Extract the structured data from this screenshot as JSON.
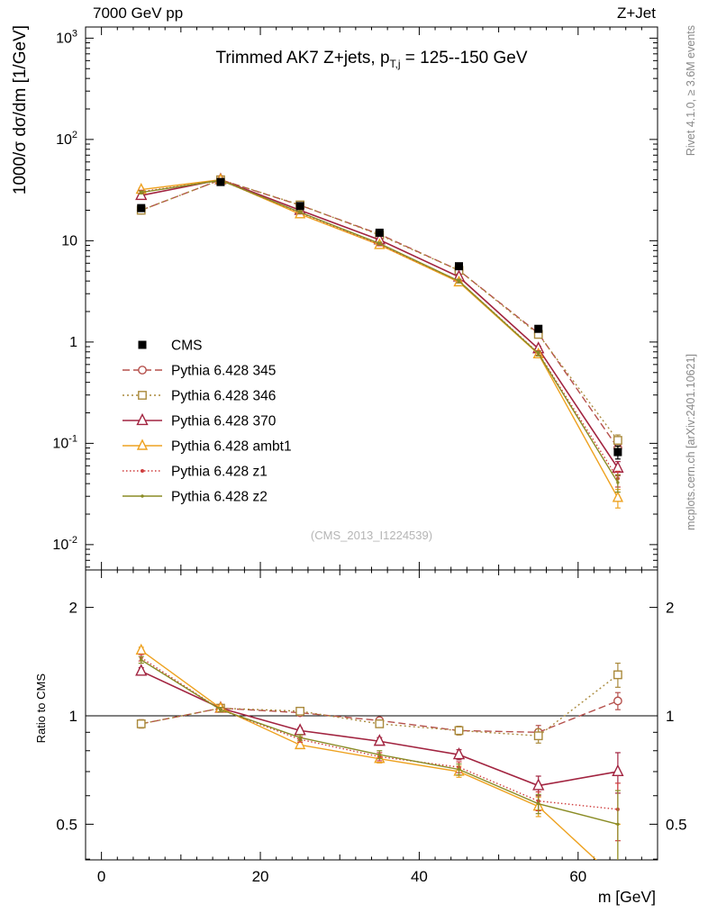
{
  "header": {
    "left_label": "7000 GeV pp",
    "right_label": "Z+Jet"
  },
  "title": {
    "pre": "Trimmed AK7 Z+jets, p",
    "sub": "T,j",
    "post": " = 125--150 GeV"
  },
  "watermark": "(CMS_2013_I1224539)",
  "side_notes": {
    "top_rotated": "Rivet 4.1.0, ≥ 3.6M events",
    "bottom_rotated": "mcplots.cern.ch [arXiv:2401.10621]"
  },
  "chart_data": {
    "type": "line",
    "title": "Trimmed AK7 Z+jets, p_T,j = 125--150 GeV",
    "xlabel": "m [GeV]",
    "ylabel_main": "1000/σ  dσ/dm [1/GeV]",
    "ylabel_ratio": "Ratio to CMS",
    "xlim": [
      -2,
      70
    ],
    "x": [
      5,
      15,
      25,
      35,
      45,
      55,
      65
    ],
    "x_ticks": {
      "minor_step": 2,
      "medium_step": 10,
      "major_step": 20,
      "labels": [
        0,
        20,
        40,
        60
      ]
    },
    "main_axis": {
      "scale": "log",
      "log_range": [
        -2.25,
        3.11
      ],
      "label_decades": [
        3,
        2,
        1,
        0,
        -1,
        -2
      ]
    },
    "ratio_axis": {
      "scale": "log",
      "log_range": [
        -0.4,
        0.405
      ],
      "labeled": [
        0.5,
        1,
        2
      ]
    },
    "legend_position": "middle-left",
    "series": [
      {
        "name": "CMS",
        "label": "CMS",
        "color": "#000000",
        "line": "none",
        "marker": "square-filled",
        "marker_size": 4.5,
        "values": [
          21,
          38,
          22,
          12,
          5.6,
          1.35,
          0.082
        ],
        "errors": [
          1.2,
          1.5,
          0.9,
          0.5,
          0.28,
          0.08,
          0.012
        ],
        "ratio": null,
        "ratio_errors": null
      },
      {
        "name": "py345",
        "label": "Pythia 6.428 345",
        "color": "#b5504c",
        "line": "dashed",
        "marker": "circle-open",
        "marker_size": 4.2,
        "values": [
          20,
          40,
          22.4,
          11.6,
          5.1,
          1.22,
          0.09
        ],
        "errors": [
          0.8,
          1.0,
          0.6,
          0.35,
          0.2,
          0.06,
          0.012
        ],
        "ratio": [
          0.95,
          1.05,
          1.02,
          0.97,
          0.91,
          0.9,
          1.1
        ],
        "ratio_errors": [
          0.025,
          0.015,
          0.015,
          0.02,
          0.025,
          0.04,
          0.06
        ]
      },
      {
        "name": "py346",
        "label": "Pythia 6.428 346",
        "color": "#aa8a3c",
        "line": "dotted",
        "marker": "square-open",
        "marker_size": 4.2,
        "values": [
          20,
          40,
          22.6,
          11.4,
          5.1,
          1.19,
          0.107
        ],
        "errors": [
          0.8,
          1.0,
          0.6,
          0.35,
          0.2,
          0.06,
          0.014
        ],
        "ratio": [
          0.95,
          1.05,
          1.03,
          0.95,
          0.91,
          0.88,
          1.3
        ],
        "ratio_errors": [
          0.025,
          0.015,
          0.015,
          0.02,
          0.025,
          0.04,
          0.1
        ]
      },
      {
        "name": "py370",
        "label": "Pythia 6.428 370",
        "color": "#a22440",
        "line": "solid",
        "marker": "triangle-open",
        "marker_size": 5.5,
        "values": [
          28,
          40,
          20,
          10.2,
          4.4,
          0.86,
          0.057
        ],
        "errors": [
          1.0,
          1.0,
          0.55,
          0.3,
          0.18,
          0.05,
          0.009
        ],
        "ratio": [
          1.33,
          1.05,
          0.91,
          0.85,
          0.78,
          0.64,
          0.7
        ],
        "ratio_errors": [
          0.03,
          0.015,
          0.015,
          0.02,
          0.025,
          0.04,
          0.09
        ]
      },
      {
        "name": "pyambt1",
        "label": "Pythia 6.428 ambt1",
        "color": "#eea220",
        "line": "solid",
        "marker": "triangle-open",
        "marker_size": 5,
        "values": [
          32,
          40,
          18.3,
          9.1,
          3.9,
          0.76,
          0.029
        ],
        "errors": [
          1.1,
          1.0,
          0.5,
          0.28,
          0.16,
          0.04,
          0.006
        ],
        "ratio": [
          1.52,
          1.05,
          0.83,
          0.76,
          0.7,
          0.56,
          0.35
        ],
        "ratio_errors": [
          0.03,
          0.015,
          0.015,
          0.02,
          0.025,
          0.035,
          0.15
        ]
      },
      {
        "name": "pyz1",
        "label": "Pythia 6.428 z1",
        "color": "#cf3f3f",
        "line": "fine-dotted",
        "marker": "dot",
        "marker_size": 2,
        "values": [
          30.5,
          39.5,
          18.9,
          9.2,
          4.0,
          0.78,
          0.045
        ],
        "errors": [
          1.0,
          1.0,
          0.5,
          0.28,
          0.16,
          0.04,
          0.008
        ],
        "ratio": [
          1.45,
          1.04,
          0.86,
          0.77,
          0.72,
          0.58,
          0.55
        ],
        "ratio_errors": [
          0.03,
          0.015,
          0.015,
          0.02,
          0.025,
          0.035,
          0.1
        ]
      },
      {
        "name": "pyz2",
        "label": "Pythia 6.428 z2",
        "color": "#8a8c25",
        "line": "solid",
        "marker": "dot",
        "marker_size": 1.7,
        "values": [
          30,
          39.5,
          19.1,
          9.4,
          4.0,
          0.77,
          0.041
        ],
        "errors": [
          1.0,
          1.0,
          0.5,
          0.28,
          0.16,
          0.04,
          0.008
        ],
        "ratio": [
          1.43,
          1.04,
          0.87,
          0.78,
          0.71,
          0.57,
          0.5
        ],
        "ratio_errors": [
          0.03,
          0.015,
          0.015,
          0.02,
          0.025,
          0.035,
          0.12
        ]
      }
    ]
  }
}
